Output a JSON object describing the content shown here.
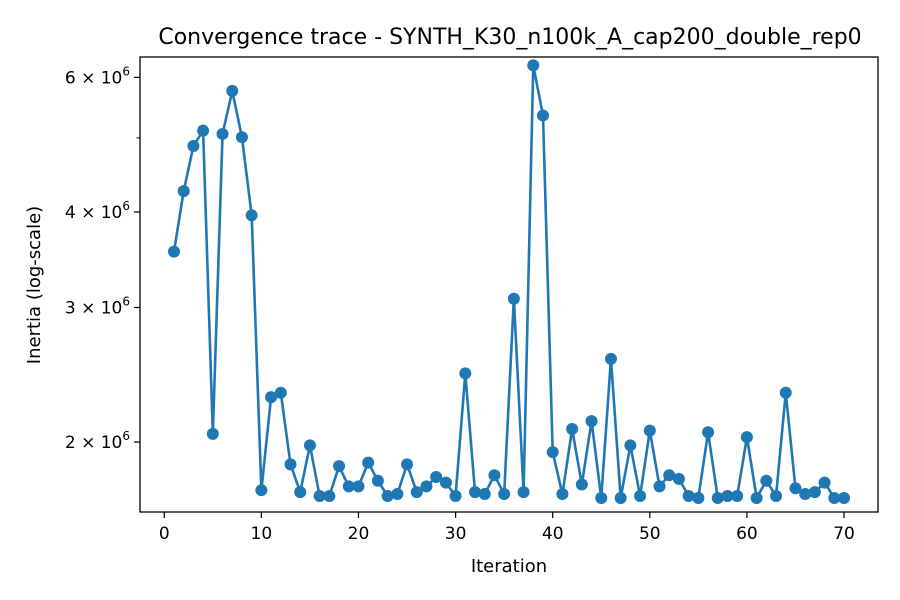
{
  "chart_data": {
    "type": "line",
    "title": "Convergence trace - SYNTH_K30_n100k_A_cap200_double_rep0",
    "xlabel": "Iteration",
    "ylabel": "Inertia (log-scale)",
    "yscale": "log",
    "xlim": [
      -2.5,
      73.5
    ],
    "ylim": [
      1620000,
      6380000
    ],
    "grid": false,
    "legend": "none",
    "color": "#1f77b4",
    "xticks": [
      0,
      10,
      20,
      30,
      40,
      50,
      60,
      70
    ],
    "xtick_labels": [
      "0",
      "10",
      "20",
      "30",
      "40",
      "50",
      "60",
      "70"
    ],
    "yticks": [
      2000000,
      3000000,
      4000000,
      6000000
    ],
    "ytick_labels": [
      {
        "mant": "2",
        "exp": "6"
      },
      {
        "mant": "3",
        "exp": "6"
      },
      {
        "mant": "4",
        "exp": "6"
      },
      {
        "mant": "6",
        "exp": "6"
      }
    ],
    "yticks_minor": [
      5000000
    ],
    "series": [
      {
        "x": [
          1,
          2,
          3,
          4,
          5,
          6,
          7,
          8,
          9,
          10,
          11,
          12,
          13,
          14,
          15,
          16,
          17,
          18,
          19,
          20,
          21,
          22,
          23,
          24,
          25,
          26,
          27,
          28,
          29,
          30,
          31,
          32,
          33,
          34,
          35,
          36,
          37,
          38,
          39,
          40,
          41,
          42,
          43,
          44,
          45,
          46,
          47,
          48,
          49,
          50,
          51,
          52,
          53,
          54,
          55,
          56,
          57,
          58,
          59,
          60,
          61,
          62,
          63,
          64,
          65,
          66,
          67,
          68,
          69,
          70
        ],
        "values": [
          3550000,
          4260000,
          4880000,
          5110000,
          2050000,
          5060000,
          5760000,
          5010000,
          3960000,
          1730000,
          2290000,
          2320000,
          1870000,
          1720000,
          1980000,
          1700000,
          1700000,
          1860000,
          1750000,
          1750000,
          1880000,
          1780000,
          1700000,
          1710000,
          1870000,
          1720000,
          1750000,
          1800000,
          1770000,
          1700000,
          2460000,
          1720000,
          1710000,
          1810000,
          1710000,
          3080000,
          1720000,
          6220000,
          5350000,
          1940000,
          1710000,
          2080000,
          1760000,
          2130000,
          1690000,
          2570000,
          1690000,
          1980000,
          1700000,
          2070000,
          1750000,
          1810000,
          1790000,
          1700000,
          1690000,
          2060000,
          1690000,
          1700000,
          1700000,
          2030000,
          1690000,
          1780000,
          1700000,
          2320000,
          1740000,
          1710000,
          1720000,
          1770000,
          1690000,
          1690000
        ]
      }
    ]
  }
}
